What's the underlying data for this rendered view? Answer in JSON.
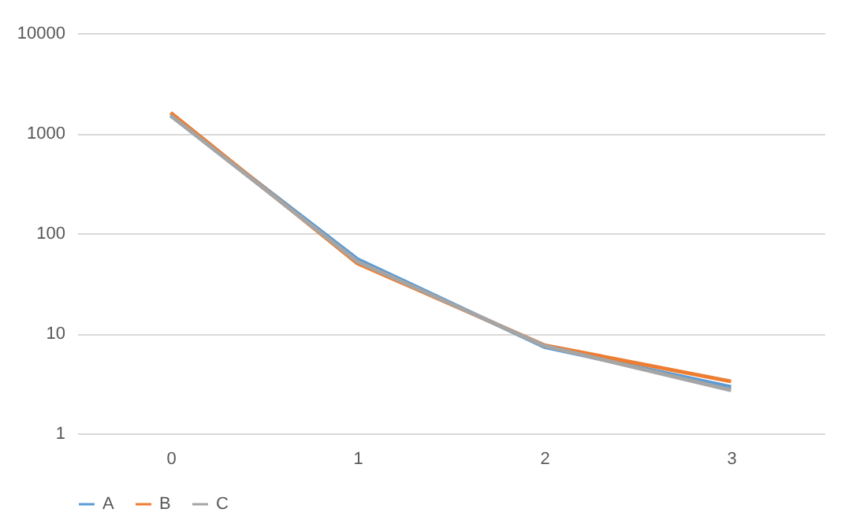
{
  "chart_data": {
    "type": "line",
    "categories": [
      "0",
      "1",
      "2",
      "3"
    ],
    "series": [
      {
        "name": "A",
        "color": "#5b9bd5",
        "values": [
          1500,
          55,
          7.3,
          2.9
        ]
      },
      {
        "name": "B",
        "color": "#ed7d31",
        "values": [
          1600,
          50,
          7.6,
          3.3
        ]
      },
      {
        "name": "C",
        "color": "#a5a5a5",
        "values": [
          1500,
          52,
          7.5,
          2.7
        ]
      }
    ],
    "log": true,
    "ylim": [
      1,
      10000
    ],
    "yticks": [
      1,
      10,
      100,
      1000,
      10000
    ],
    "grid": "y",
    "legend": "bottom",
    "marker": "none",
    "line_style": "solid"
  }
}
